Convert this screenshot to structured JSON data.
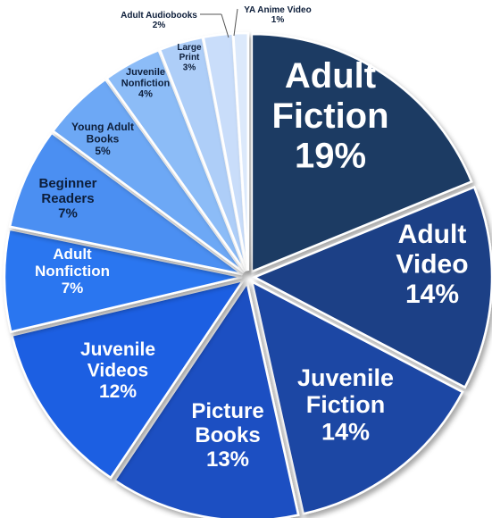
{
  "chart_data": {
    "type": "pie",
    "title": "",
    "slices": [
      {
        "label": "Adult Fiction",
        "value": 19,
        "pct_label": "19%",
        "color": "#1b3a63"
      },
      {
        "label": "Adult Video",
        "value": 14,
        "pct_label": "14%",
        "color": "#1d3f86"
      },
      {
        "label": "Juvenile Fiction",
        "value": 14,
        "pct_label": "14%",
        "color": "#1f46a4"
      },
      {
        "label": "Picture Books",
        "value": 13,
        "pct_label": "13%",
        "color": "#1e4fc2"
      },
      {
        "label": "Juvenile Videos",
        "value": 12,
        "pct_label": "12%",
        "color": "#1e5fe2"
      },
      {
        "label": "Adult Nonfiction",
        "value": 7,
        "pct_label": "7%",
        "color": "#2c76f0"
      },
      {
        "label": "Beginner Readers",
        "value": 7,
        "pct_label": "7%",
        "color": "#4b8ff2"
      },
      {
        "label": "Young Adult Books",
        "value": 5,
        "pct_label": "5%",
        "color": "#6da8f5"
      },
      {
        "label": "Juvenile Nonfiction",
        "value": 4,
        "pct_label": "4%",
        "color": "#8cbcf7"
      },
      {
        "label": "Large Print",
        "value": 3,
        "pct_label": "3%",
        "color": "#aecef8"
      },
      {
        "label": "Adult Audiobooks",
        "value": 2,
        "pct_label": "2%",
        "color": "#c9ddfa"
      },
      {
        "label": "YA Anime Video",
        "value": 1,
        "pct_label": "1%",
        "color": "#dce9fb"
      }
    ],
    "exploded": true,
    "legend": "none"
  }
}
